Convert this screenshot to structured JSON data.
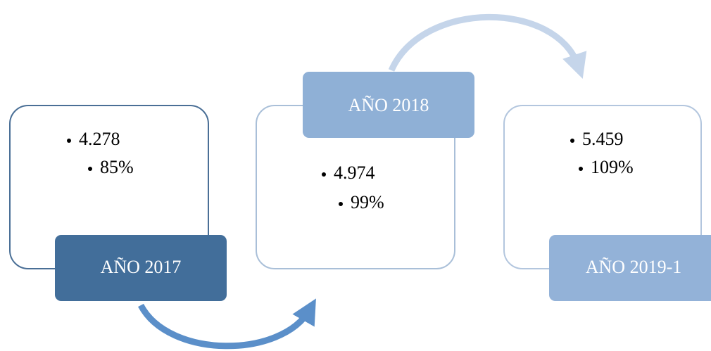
{
  "boxes": [
    {
      "label": "AÑO 2017",
      "items": [
        "4.278",
        "85%"
      ]
    },
    {
      "label": "AÑO 2018",
      "items": [
        "4.974",
        "99%"
      ]
    },
    {
      "label": "AÑO 2019-1",
      "items": [
        "5.459",
        "109%"
      ]
    }
  ]
}
